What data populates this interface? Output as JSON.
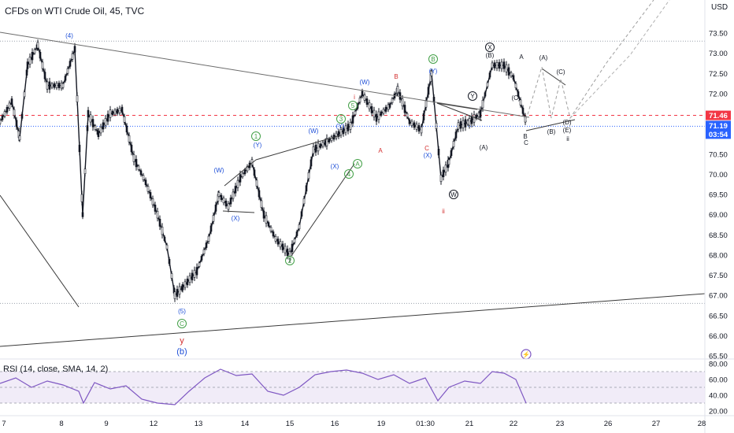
{
  "header": {
    "title": "CFDs on WTI Crude Oil, 45, TVC"
  },
  "rsi_label": "RSI (14, close, SMA, 14, 2)",
  "currency": "USD",
  "colors": {
    "candle": "#131722",
    "rsi_line": "#7e57c2",
    "rsi_band": "#ede7f6",
    "price_line": "#2962ff",
    "last_price": "#2962ff",
    "red_level": "#f23645",
    "green_wave": "#43a047",
    "blue_wave": "#1e4fd8",
    "red_wave": "#d32f2f"
  },
  "chart_data": {
    "type": "candlestick",
    "title": "CFDs on WTI Crude Oil, 45, TVC",
    "x_ticks": [
      "7",
      "8",
      "9",
      "12",
      "13",
      "14",
      "15",
      "16",
      "19",
      "01:30",
      "21",
      "22",
      "23",
      "26",
      "27",
      "28"
    ],
    "y_ticks": [
      "73.50",
      "73.00",
      "72.50",
      "72.00",
      "71.50",
      "71.00",
      "70.50",
      "70.00",
      "69.50",
      "69.00",
      "68.50",
      "68.00",
      "67.50",
      "67.00",
      "66.50",
      "66.00",
      "65.50"
    ],
    "ylim": [
      65.35,
      74.1
    ],
    "price_path": [
      [
        0,
        71.3
      ],
      [
        15,
        71.8
      ],
      [
        25,
        70.9
      ],
      [
        35,
        72.7
      ],
      [
        48,
        73.2
      ],
      [
        60,
        72.2
      ],
      [
        80,
        72.2
      ],
      [
        95,
        73.1
      ],
      [
        105,
        69.0
      ],
      [
        112,
        71.5
      ],
      [
        125,
        71.0
      ],
      [
        140,
        71.5
      ],
      [
        155,
        71.6
      ],
      [
        170,
        70.4
      ],
      [
        185,
        69.8
      ],
      [
        200,
        69.0
      ],
      [
        212,
        68.2
      ],
      [
        222,
        67.0
      ],
      [
        232,
        67.2
      ],
      [
        250,
        67.6
      ],
      [
        265,
        68.4
      ],
      [
        278,
        69.5
      ],
      [
        290,
        69.2
      ],
      [
        305,
        69.9
      ],
      [
        320,
        70.3
      ],
      [
        335,
        69.0
      ],
      [
        350,
        68.4
      ],
      [
        368,
        68.0
      ],
      [
        380,
        68.7
      ],
      [
        398,
        70.6
      ],
      [
        415,
        70.8
      ],
      [
        430,
        71.0
      ],
      [
        445,
        71.2
      ],
      [
        460,
        72.0
      ],
      [
        478,
        71.4
      ],
      [
        495,
        71.7
      ],
      [
        505,
        72.1
      ],
      [
        520,
        71.3
      ],
      [
        535,
        71.1
      ],
      [
        548,
        72.5
      ],
      [
        560,
        69.9
      ],
      [
        570,
        70.3
      ],
      [
        582,
        71.2
      ],
      [
        596,
        71.3
      ],
      [
        610,
        71.5
      ],
      [
        625,
        72.7
      ],
      [
        640,
        72.7
      ],
      [
        652,
        72.4
      ],
      [
        668,
        71.3
      ]
    ],
    "rsi_ticks": [
      "80.00",
      "60.00",
      "40.00",
      "20.00"
    ],
    "rsi_band": [
      30,
      70
    ],
    "rsi_path": [
      [
        0,
        55
      ],
      [
        20,
        62
      ],
      [
        40,
        50
      ],
      [
        60,
        58
      ],
      [
        80,
        53
      ],
      [
        100,
        45
      ],
      [
        106,
        30
      ],
      [
        120,
        56
      ],
      [
        140,
        48
      ],
      [
        160,
        52
      ],
      [
        180,
        35
      ],
      [
        200,
        30
      ],
      [
        222,
        28
      ],
      [
        240,
        45
      ],
      [
        260,
        62
      ],
      [
        280,
        73
      ],
      [
        300,
        65
      ],
      [
        320,
        67
      ],
      [
        340,
        45
      ],
      [
        360,
        40
      ],
      [
        380,
        50
      ],
      [
        400,
        66
      ],
      [
        420,
        70
      ],
      [
        440,
        72
      ],
      [
        460,
        68
      ],
      [
        480,
        60
      ],
      [
        500,
        66
      ],
      [
        520,
        55
      ],
      [
        540,
        62
      ],
      [
        556,
        33
      ],
      [
        570,
        50
      ],
      [
        590,
        58
      ],
      [
        610,
        55
      ],
      [
        625,
        70
      ],
      [
        640,
        68
      ],
      [
        655,
        60
      ],
      [
        668,
        30
      ]
    ],
    "price_labels": [
      {
        "text": "71.46",
        "kind": "red-level"
      },
      {
        "text": "71.19",
        "kind": "last-price"
      },
      {
        "text": "03:54",
        "kind": "countdown"
      }
    ],
    "wave_labels": [
      {
        "text": "(4)",
        "color": "blue"
      },
      {
        "text": "(5)",
        "color": "blue"
      },
      {
        "text": "C",
        "color": "green-circled"
      },
      {
        "text": "y",
        "color": "red"
      },
      {
        "text": "(b)",
        "color": "blue"
      },
      {
        "text": "(W)",
        "color": "blue"
      },
      {
        "text": "(X)",
        "color": "blue"
      },
      {
        "text": "(Y)",
        "color": "blue"
      },
      {
        "text": "1",
        "color": "green-circled"
      },
      {
        "text": "2",
        "color": "green-circled"
      },
      {
        "text": "3",
        "color": "green-circled"
      },
      {
        "text": "4",
        "color": "green-circled"
      },
      {
        "text": "5",
        "color": "green-circled"
      },
      {
        "text": "A",
        "color": "green-circled"
      },
      {
        "text": "B",
        "color": "green-circled"
      },
      {
        "text": "(W)",
        "color": "blue"
      },
      {
        "text": "(X)",
        "color": "blue"
      },
      {
        "text": "(Y)",
        "color": "blue"
      },
      {
        "text": "(X)",
        "color": "blue"
      },
      {
        "text": "(Y)",
        "color": "blue"
      },
      {
        "text": "(W)",
        "color": "blue"
      },
      {
        "text": "i",
        "color": "red"
      },
      {
        "text": "ii",
        "color": "red"
      },
      {
        "text": "A",
        "color": "red"
      },
      {
        "text": "B",
        "color": "red"
      },
      {
        "text": "C",
        "color": "red"
      },
      {
        "text": "W",
        "color": "black-circled"
      },
      {
        "text": "X",
        "color": "black-circled"
      },
      {
        "text": "Y",
        "color": "black-circled"
      },
      {
        "text": "(A)",
        "color": "black"
      },
      {
        "text": "(B)",
        "color": "black"
      },
      {
        "text": "(C)",
        "color": "black"
      },
      {
        "text": "A",
        "color": "black"
      },
      {
        "text": "B",
        "color": "black"
      },
      {
        "text": "C",
        "color": "black"
      },
      {
        "text": "(A)",
        "color": "black"
      },
      {
        "text": "(B)",
        "color": "black"
      },
      {
        "text": "(C)",
        "color": "black"
      },
      {
        "text": "(D)",
        "color": "black"
      },
      {
        "text": "(E)",
        "color": "black"
      },
      {
        "text": "ii",
        "color": "black"
      }
    ]
  }
}
